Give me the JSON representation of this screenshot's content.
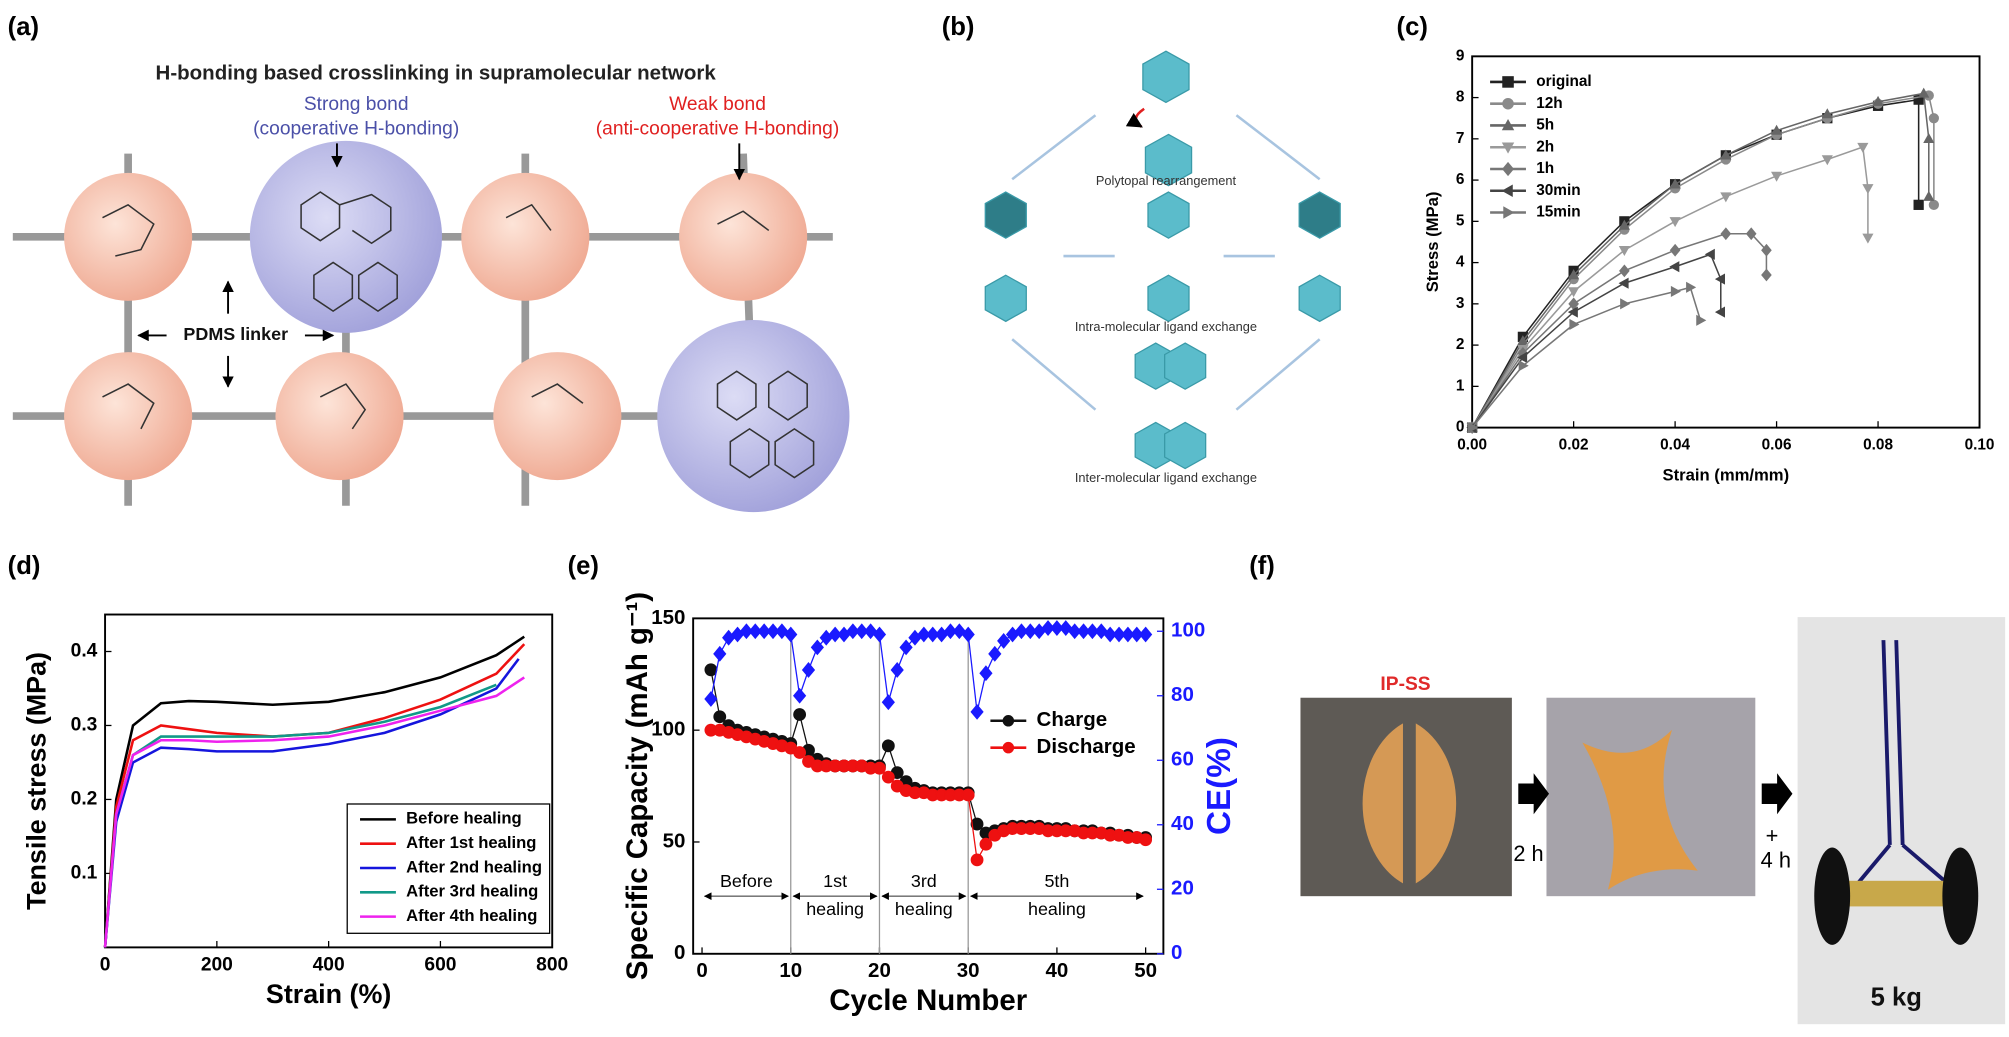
{
  "panel_labels": [
    "(a)",
    "(b)",
    "(c)",
    "(d)",
    "(e)",
    "(f)"
  ],
  "panel_a": {
    "title": "H-bonding based crosslinking in supramolecular network",
    "strong_bond": "Strong bond",
    "strong_note": "(cooperative H-bonding)",
    "weak_bond": "Weak bond",
    "weak_note": "(anti-cooperative H-bonding)",
    "linker": "PDMS linker"
  },
  "panel_b": {
    "top": "Polytopal rearrangement",
    "middle": "Intra-molecular ligand exchange",
    "bottom": "Inter-molecular ligand exchange"
  },
  "panel_f": {
    "sample": "IP-SS",
    "step1": "2 h",
    "plus": "+",
    "step2": "4 h",
    "weight": "5 kg"
  },
  "chart_data": [
    {
      "type": "line",
      "xlabel": "Strain (mm/mm)",
      "ylabel": "Stress (MPa)",
      "xlim": [
        0,
        0.1
      ],
      "ylim": [
        0,
        9
      ],
      "xticks": [
        {
          "value": 0,
          "label": "0.00"
        },
        {
          "value": 0.02,
          "label": "0.02"
        },
        {
          "value": 0.04,
          "label": "0.04"
        },
        {
          "value": 0.06,
          "label": "0.06"
        },
        {
          "value": 0.08,
          "label": "0.08"
        },
        {
          "value": 0.1,
          "label": "0.10"
        }
      ],
      "yticks": [
        0,
        1,
        2,
        3,
        4,
        5,
        6,
        7,
        8,
        9
      ],
      "legend": "upper left",
      "series": [
        {
          "name": "original",
          "color": "#222222",
          "marker": "square",
          "x": [
            0,
            0.01,
            0.02,
            0.03,
            0.04,
            0.05,
            0.06,
            0.07,
            0.08,
            0.088,
            0.088
          ],
          "values": [
            0,
            2.2,
            3.8,
            5.0,
            5.9,
            6.6,
            7.1,
            7.5,
            7.8,
            7.95,
            5.4
          ]
        },
        {
          "name": "12h",
          "color": "#8a8a8a",
          "marker": "circle",
          "x": [
            0,
            0.01,
            0.02,
            0.03,
            0.04,
            0.05,
            0.06,
            0.07,
            0.08,
            0.09,
            0.091,
            0.091
          ],
          "values": [
            0,
            2.0,
            3.6,
            4.8,
            5.8,
            6.5,
            7.1,
            7.5,
            7.85,
            8.05,
            7.5,
            5.4
          ]
        },
        {
          "name": "5h",
          "color": "#666666",
          "marker": "triangle-up",
          "x": [
            0,
            0.01,
            0.02,
            0.03,
            0.04,
            0.05,
            0.06,
            0.07,
            0.08,
            0.089,
            0.09,
            0.09
          ],
          "values": [
            0,
            2.1,
            3.7,
            4.9,
            5.9,
            6.6,
            7.2,
            7.6,
            7.9,
            8.1,
            7.0,
            5.6
          ]
        },
        {
          "name": "2h",
          "color": "#9a9a9a",
          "marker": "triangle-down",
          "x": [
            0,
            0.01,
            0.02,
            0.03,
            0.04,
            0.05,
            0.06,
            0.07,
            0.077,
            0.078,
            0.078
          ],
          "values": [
            0,
            1.9,
            3.3,
            4.3,
            5.0,
            5.6,
            6.1,
            6.5,
            6.8,
            5.8,
            4.6
          ]
        },
        {
          "name": "1h",
          "color": "#777777",
          "marker": "diamond",
          "x": [
            0,
            0.01,
            0.02,
            0.03,
            0.04,
            0.05,
            0.055,
            0.058,
            0.058
          ],
          "values": [
            0,
            1.8,
            3.0,
            3.8,
            4.3,
            4.7,
            4.7,
            4.3,
            3.7
          ]
        },
        {
          "name": "30min",
          "color": "#444444",
          "marker": "triangle-left",
          "x": [
            0,
            0.01,
            0.02,
            0.03,
            0.04,
            0.047,
            0.049,
            0.049
          ],
          "values": [
            0,
            1.7,
            2.8,
            3.5,
            3.9,
            4.2,
            3.6,
            2.8
          ]
        },
        {
          "name": "15min",
          "color": "#777777",
          "marker": "triangle-right",
          "x": [
            0,
            0.01,
            0.02,
            0.03,
            0.04,
            0.043,
            0.045
          ],
          "values": [
            0,
            1.5,
            2.5,
            3.0,
            3.3,
            3.4,
            2.6
          ]
        }
      ]
    },
    {
      "type": "line",
      "xlabel": "Strain (%)",
      "ylabel": "Tensile stress (MPa)",
      "xlim": [
        0,
        800
      ],
      "ylim": [
        0,
        0.45
      ],
      "xticks": [
        0,
        200,
        400,
        600,
        800
      ],
      "yticks": [
        0.1,
        0.2,
        0.3,
        0.4
      ],
      "legend": "lower right",
      "series": [
        {
          "name": "Before healing",
          "color": "#000000",
          "x": [
            0,
            20,
            50,
            100,
            150,
            200,
            300,
            400,
            500,
            600,
            700,
            750
          ],
          "values": [
            0,
            0.2,
            0.3,
            0.33,
            0.333,
            0.332,
            0.328,
            0.332,
            0.345,
            0.365,
            0.395,
            0.42
          ]
        },
        {
          "name": "After 1st healing",
          "color": "#ee1111",
          "x": [
            0,
            20,
            50,
            100,
            150,
            200,
            300,
            400,
            500,
            600,
            700,
            750
          ],
          "values": [
            0,
            0.19,
            0.28,
            0.3,
            0.295,
            0.29,
            0.285,
            0.29,
            0.31,
            0.335,
            0.37,
            0.41
          ]
        },
        {
          "name": "After 2nd healing",
          "color": "#1515dd",
          "x": [
            0,
            20,
            50,
            100,
            150,
            200,
            300,
            400,
            500,
            600,
            700,
            740
          ],
          "values": [
            0,
            0.17,
            0.25,
            0.27,
            0.268,
            0.265,
            0.265,
            0.275,
            0.29,
            0.315,
            0.35,
            0.39
          ]
        },
        {
          "name": "After 3rd healing",
          "color": "#119988",
          "x": [
            0,
            20,
            50,
            100,
            150,
            200,
            300,
            400,
            500,
            600,
            700
          ],
          "values": [
            0,
            0.18,
            0.26,
            0.285,
            0.285,
            0.285,
            0.285,
            0.29,
            0.305,
            0.325,
            0.355
          ]
        },
        {
          "name": "After 4th healing",
          "color": "#ee22ee",
          "x": [
            0,
            20,
            50,
            100,
            150,
            200,
            300,
            400,
            500,
            600,
            700,
            750
          ],
          "values": [
            0,
            0.18,
            0.26,
            0.28,
            0.28,
            0.278,
            0.28,
            0.285,
            0.3,
            0.32,
            0.34,
            0.365
          ]
        }
      ]
    },
    {
      "type": "line",
      "xlabel": "Cycle Number",
      "ylabel": "Specific Capacity (mAh g⁻¹)",
      "y2label": "CE(%)",
      "y2_color": "#1a1aff",
      "xlim": [
        -1,
        52
      ],
      "ylim": [
        0,
        150
      ],
      "y2lim": [
        0,
        104
      ],
      "xticks": [
        0,
        10,
        20,
        30,
        40,
        50
      ],
      "yticks": [
        0,
        50,
        100,
        150
      ],
      "y2ticks": [
        0,
        20,
        40,
        60,
        80,
        100
      ],
      "legend": "center right",
      "x": [
        1,
        2,
        3,
        4,
        5,
        6,
        7,
        8,
        9,
        10,
        11,
        12,
        13,
        14,
        15,
        16,
        17,
        18,
        19,
        20,
        21,
        22,
        23,
        24,
        25,
        26,
        27,
        28,
        29,
        30,
        31,
        32,
        33,
        34,
        35,
        36,
        37,
        38,
        39,
        40,
        41,
        42,
        43,
        44,
        45,
        46,
        47,
        48,
        49,
        50
      ],
      "regions": [
        {
          "label": [
            "Before"
          ],
          "start": 0,
          "end": 10
        },
        {
          "label": [
            "1st",
            "healing"
          ],
          "start": 10,
          "end": 20
        },
        {
          "label": [
            "3rd",
            "healing"
          ],
          "start": 20,
          "end": 30
        },
        {
          "label": [
            "5th",
            "healing"
          ],
          "start": 30,
          "end": 50
        }
      ],
      "series": [
        {
          "name": "Charge",
          "color": "#111111",
          "marker": "circle",
          "values": [
            127,
            106,
            102,
            100,
            99,
            98,
            97,
            96,
            95,
            94,
            107,
            91,
            87,
            85,
            84,
            84,
            84,
            84,
            84,
            84,
            93,
            81,
            77,
            74,
            73,
            72,
            72,
            72,
            72,
            72,
            58,
            54,
            55,
            56,
            57,
            57,
            57,
            57,
            56,
            56,
            56,
            55,
            55,
            55,
            54,
            54,
            53,
            53,
            52,
            52
          ]
        },
        {
          "name": "Discharge",
          "color": "#ee1111",
          "marker": "circle",
          "values": [
            100,
            100,
            99,
            98,
            97,
            96,
            95,
            94,
            93,
            92,
            90,
            86,
            84,
            84,
            84,
            84,
            84,
            84,
            83,
            83,
            79,
            75,
            73,
            72,
            72,
            71,
            71,
            71,
            71,
            71,
            42,
            49,
            53,
            55,
            56,
            56,
            56,
            56,
            55,
            55,
            55,
            55,
            54,
            54,
            54,
            53,
            53,
            52,
            52,
            51
          ]
        },
        {
          "color": "#1a1aff",
          "marker": "diamond",
          "axis": "y2",
          "values": [
            79,
            93,
            98,
            99,
            100,
            100,
            100,
            100,
            100,
            99,
            80,
            88,
            95,
            98,
            99,
            99,
            100,
            100,
            100,
            99,
            78,
            88,
            95,
            98,
            99,
            99,
            99,
            100,
            100,
            99,
            75,
            87,
            93,
            97,
            99,
            100,
            100,
            100,
            101,
            101,
            101,
            100,
            100,
            100,
            100,
            99,
            99,
            99,
            99,
            99
          ]
        }
      ]
    }
  ]
}
